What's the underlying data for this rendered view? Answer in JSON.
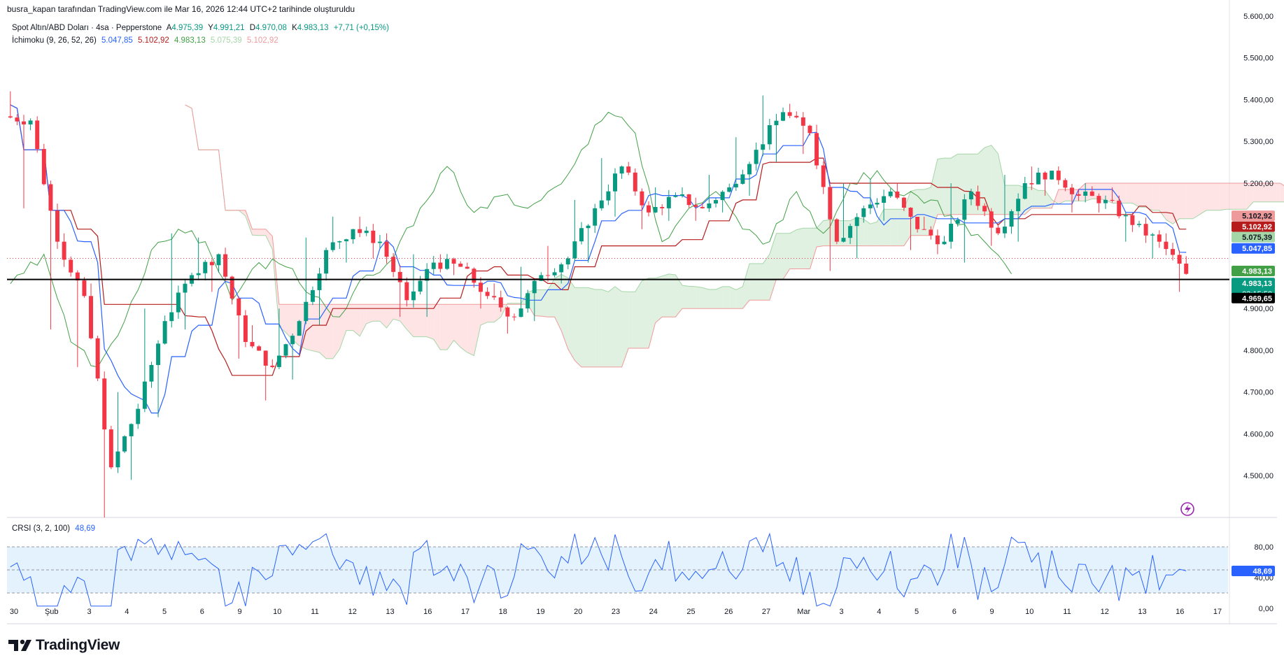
{
  "caption": "busra_kapan tarafından TradingView.com ile Mar 16, 2026 12:44 UTC+2 tarihinde oluşturuldu",
  "symbol": {
    "title": "Spot Altın/ABD Doları · 4sa · Pepperstone",
    "open_label": "A",
    "open": "4.975,39",
    "high_label": "Y",
    "high": "4.991,21",
    "low_label": "D",
    "low": "4.970,08",
    "close_label": "K",
    "close": "4.983,13",
    "change": "+7,71 (+0,15%)"
  },
  "ichimoku": {
    "label": "İchimoku (9, 26, 52, 26)",
    "values": [
      "5.047,85",
      "5.102,92",
      "4.983,13",
      "5.075,39",
      "5.102,92"
    ],
    "colors": [
      "#2962ff",
      "#b71c1c",
      "#43a047",
      "#a5d6a7",
      "#ef9a9a"
    ]
  },
  "crsi": {
    "label": "CRSI (3, 2, 100)",
    "value": "48,69"
  },
  "colors": {
    "up": "#089981",
    "down": "#f23645",
    "tenkan": "#2962ff",
    "kijun": "#b71c1c",
    "chikou": "#43a047",
    "cloud_bull": "#c8e6c9",
    "cloud_bear": "#ffcdd2",
    "crsi_line": "#2962ff",
    "crsi_band": "#e3f2fd"
  },
  "price_labels": [
    {
      "text": "5.102,92",
      "price": 5122,
      "bg": "#ef9a9a",
      "fg": "#131722"
    },
    {
      "text": "5.102,92",
      "price": 5096,
      "bg": "#b71c1c",
      "fg": "#ffffff"
    },
    {
      "text": "5.075,39",
      "price": 5071,
      "bg": "#a5d6a7",
      "fg": "#131722"
    },
    {
      "text": "5.047,85",
      "price": 5044,
      "bg": "#2962ff",
      "fg": "#ffffff"
    },
    {
      "text": "4.983,13",
      "price": 4990,
      "bg": "#43a047",
      "fg": "#ffffff"
    },
    {
      "text": "4.983,13",
      "price": 4961,
      "bg": "#089981",
      "fg": "#ffffff",
      "sub": "03:15:58"
    },
    {
      "text": "4.969,65",
      "price": 4925,
      "bg": "#000000",
      "fg": "#ffffff"
    }
  ],
  "crsi_label_value": "48,69",
  "branding": "TradingView",
  "chart_data": {
    "type": "candlestick",
    "price_axis": {
      "ticks": [
        4500,
        4600,
        4700,
        4800,
        4900,
        5200,
        5300,
        5400,
        5500,
        5600
      ],
      "tick_labels": [
        "4.500,00",
        "4.600,00",
        "4.700,00",
        "4.800,00",
        "4.900,00",
        "5.200,00",
        "5.300,00",
        "5.400,00",
        "5.500,00",
        "5.600,00"
      ],
      "range": [
        4400,
        5605
      ]
    },
    "crsi_axis": {
      "ticks": [
        0,
        40,
        80
      ],
      "tick_labels": [
        "0,00",
        "40,00",
        "80,00"
      ],
      "range": [
        0,
        100
      ],
      "band": [
        20,
        80
      ]
    },
    "horizontal_line": 4969.65,
    "dotted_line": 5020,
    "time_axis": [
      "30",
      "Şub",
      "3",
      "4",
      "5",
      "6",
      "9",
      "10",
      "11",
      "12",
      "13",
      "16",
      "17",
      "18",
      "19",
      "20",
      "23",
      "24",
      "25",
      "26",
      "27",
      "Mar",
      "3",
      "4",
      "5",
      "6",
      "9",
      "10",
      "11",
      "12",
      "13",
      "16",
      "17"
    ],
    "segments": [
      {
        "o": 5360,
        "c": 5350,
        "h": 5420,
        "l": 5140
      },
      {
        "o": 5350,
        "c": 5060,
        "h": 5360,
        "l": 4850
      },
      {
        "o": 5060,
        "c": 4930,
        "h": 5080,
        "l": 4760
      },
      {
        "o": 4930,
        "c": 4520,
        "h": 4960,
        "l": 4400
      },
      {
        "o": 4520,
        "c": 4660,
        "h": 4700,
        "l": 4490
      },
      {
        "o": 4660,
        "c": 4870,
        "h": 4900,
        "l": 4640
      },
      {
        "o": 4870,
        "c": 4980,
        "h": 5080,
        "l": 4850
      },
      {
        "o": 4980,
        "c": 5030,
        "h": 5070,
        "l": 4940
      },
      {
        "o": 5030,
        "c": 4820,
        "h": 5040,
        "l": 4780
      },
      {
        "o": 4820,
        "c": 4760,
        "h": 4860,
        "l": 4680
      },
      {
        "o": 4760,
        "c": 4870,
        "h": 4900,
        "l": 4730
      },
      {
        "o": 4870,
        "c": 5040,
        "h": 5070,
        "l": 4860
      },
      {
        "o": 5040,
        "c": 5090,
        "h": 5120,
        "l": 5010
      },
      {
        "o": 5090,
        "c": 5060,
        "h": 5120,
        "l": 5020
      },
      {
        "o": 5060,
        "c": 4920,
        "h": 5080,
        "l": 4880
      },
      {
        "o": 4920,
        "c": 5010,
        "h": 5030,
        "l": 4880
      },
      {
        "o": 5010,
        "c": 5000,
        "h": 5030,
        "l": 4980
      },
      {
        "o": 5000,
        "c": 4930,
        "h": 5010,
        "l": 4900
      },
      {
        "o": 4930,
        "c": 4880,
        "h": 4960,
        "l": 4840
      },
      {
        "o": 4880,
        "c": 4980,
        "h": 5000,
        "l": 4870
      },
      {
        "o": 4980,
        "c": 5020,
        "h": 5050,
        "l": 4960
      },
      {
        "o": 5020,
        "c": 5140,
        "h": 5160,
        "l": 5010
      },
      {
        "o": 5140,
        "c": 5240,
        "h": 5260,
        "l": 5120
      },
      {
        "o": 5240,
        "c": 5130,
        "h": 5250,
        "l": 5090
      },
      {
        "o": 5130,
        "c": 5170,
        "h": 5190,
        "l": 5110
      },
      {
        "o": 5170,
        "c": 5140,
        "h": 5190,
        "l": 5110
      },
      {
        "o": 5140,
        "c": 5190,
        "h": 5220,
        "l": 5130
      },
      {
        "o": 5190,
        "c": 5280,
        "h": 5310,
        "l": 5170
      },
      {
        "o": 5280,
        "c": 5370,
        "h": 5410,
        "l": 5250
      },
      {
        "o": 5370,
        "c": 5320,
        "h": 5390,
        "l": 5270
      },
      {
        "o": 5320,
        "c": 5060,
        "h": 5340,
        "l": 4990
      },
      {
        "o": 5060,
        "c": 5140,
        "h": 5200,
        "l": 5020
      },
      {
        "o": 5140,
        "c": 5180,
        "h": 5210,
        "l": 5110
      },
      {
        "o": 5180,
        "c": 5090,
        "h": 5200,
        "l": 5040
      },
      {
        "o": 5090,
        "c": 5060,
        "h": 5120,
        "l": 5030
      },
      {
        "o": 5060,
        "c": 5180,
        "h": 5200,
        "l": 5010
      },
      {
        "o": 5180,
        "c": 5080,
        "h": 5190,
        "l": 5050
      },
      {
        "o": 5080,
        "c": 5200,
        "h": 5220,
        "l": 5060
      },
      {
        "o": 5200,
        "c": 5230,
        "h": 5240,
        "l": 5170
      },
      {
        "o": 5230,
        "c": 5170,
        "h": 5240,
        "l": 5130
      },
      {
        "o": 5170,
        "c": 5160,
        "h": 5200,
        "l": 5130
      },
      {
        "o": 5160,
        "c": 5100,
        "h": 5190,
        "l": 5060
      },
      {
        "o": 5100,
        "c": 5060,
        "h": 5110,
        "l": 5020
      },
      {
        "o": 5060,
        "c": 4983,
        "h": 5080,
        "l": 4940
      }
    ]
  }
}
